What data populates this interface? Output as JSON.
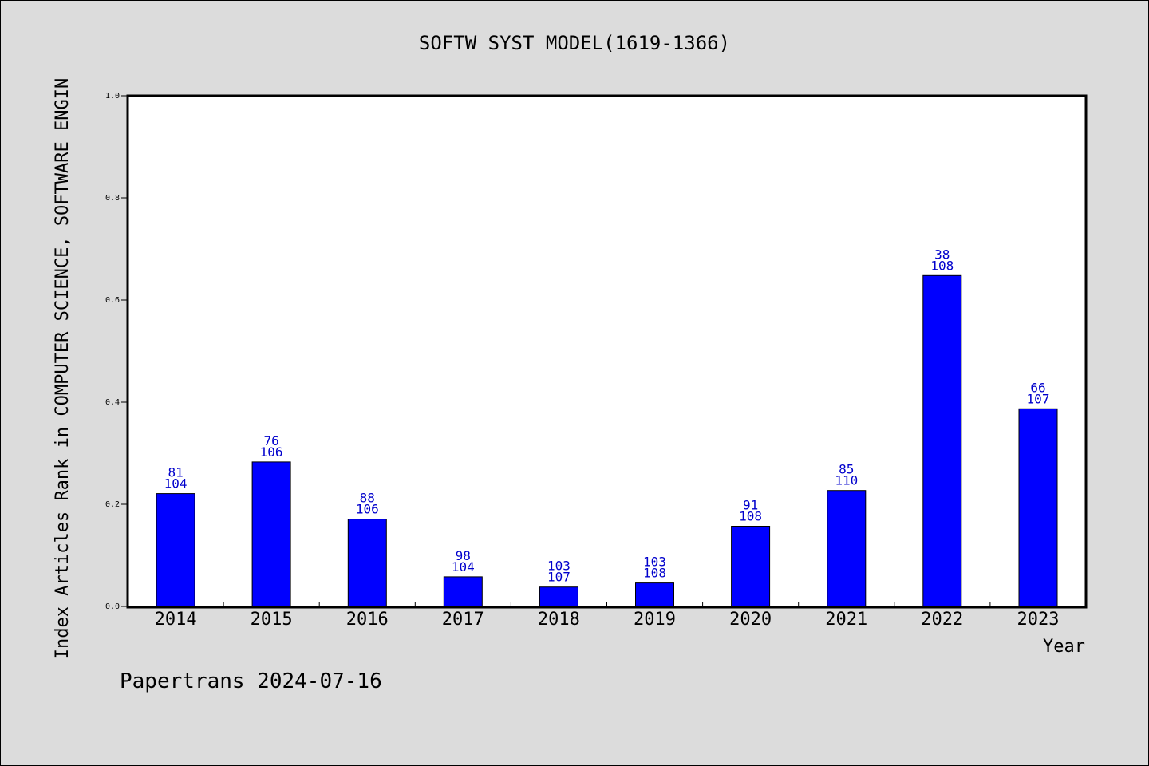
{
  "chart_data": {
    "type": "bar",
    "title": "SOFTW SYST MODEL(1619-1366)",
    "xlabel": "Year",
    "ylabel": "Index Articles Rank in COMPUTER SCIENCE, SOFTWARE ENGIN",
    "categories": [
      "2014",
      "2015",
      "2016",
      "2017",
      "2018",
      "2019",
      "2020",
      "2021",
      "2022",
      "2023"
    ],
    "values": [
      0.221,
      0.283,
      0.171,
      0.058,
      0.038,
      0.046,
      0.157,
      0.227,
      0.648,
      0.387
    ],
    "labels_top": [
      "81",
      "76",
      "88",
      "98",
      "103",
      "103",
      "91",
      "85",
      "38",
      "66"
    ],
    "labels_bottom": [
      "104",
      "106",
      "106",
      "104",
      "107",
      "108",
      "108",
      "110",
      "108",
      "107"
    ],
    "yticks": [
      "0.0",
      "0.2",
      "0.4",
      "0.6",
      "0.8",
      "1.0"
    ],
    "ylim": [
      0,
      1.0
    ],
    "grid": false,
    "bar_color": "#0000ff",
    "label_color": "#0000cc",
    "background": "#dcdcdc",
    "plot_background": "#ffffff"
  },
  "footer": "Papertrans 2024-07-16"
}
